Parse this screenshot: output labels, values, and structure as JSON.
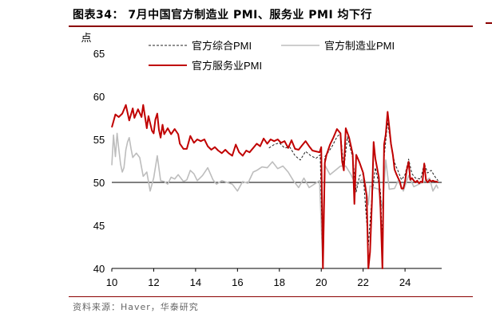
{
  "title": "图表34： 7月中国官方制造业 PMI、服务业 PMI 均下行",
  "source": "资料来源：Haver，华泰研究",
  "chart_data": {
    "type": "line",
    "ylabel": "点",
    "xlim": [
      2010,
      2025.75
    ],
    "ylim": [
      40,
      65
    ],
    "yticks": [
      40,
      45,
      50,
      55,
      60,
      65
    ],
    "xticks": [
      2010,
      2012,
      2014,
      2016,
      2018,
      2020,
      2022,
      2024
    ],
    "xtick_labels": [
      "10",
      "12",
      "14",
      "16",
      "18",
      "20",
      "22",
      "24"
    ],
    "reference_line": 50,
    "legend": "top",
    "series": [
      {
        "name": "官方综合PMI",
        "color": "#222222",
        "style": "dashed",
        "points": [
          [
            2017.5,
            54.0
          ],
          [
            2017.75,
            54.4
          ],
          [
            2018.0,
            54.6
          ],
          [
            2018.25,
            54.0
          ],
          [
            2018.5,
            54.1
          ],
          [
            2018.75,
            53.1
          ],
          [
            2019.0,
            52.6
          ],
          [
            2019.25,
            53.6
          ],
          [
            2019.5,
            53.1
          ],
          [
            2019.75,
            52.8
          ],
          [
            2019.95,
            53.2
          ],
          [
            2020.08,
            28.9
          ],
          [
            2020.17,
            53.0
          ],
          [
            2020.3,
            53.4
          ],
          [
            2020.5,
            54.1
          ],
          [
            2020.75,
            55.3
          ],
          [
            2020.92,
            55.7
          ],
          [
            2021.08,
            51.6
          ],
          [
            2021.25,
            55.3
          ],
          [
            2021.5,
            52.9
          ],
          [
            2021.67,
            48.9
          ],
          [
            2021.83,
            50.8
          ],
          [
            2022.0,
            51.0
          ],
          [
            2022.25,
            42.7
          ],
          [
            2022.42,
            48.4
          ],
          [
            2022.58,
            51.7
          ],
          [
            2022.83,
            49.0
          ],
          [
            2022.92,
            42.6
          ],
          [
            2023.0,
            52.9
          ],
          [
            2023.17,
            57.0
          ],
          [
            2023.33,
            54.4
          ],
          [
            2023.5,
            52.3
          ],
          [
            2023.67,
            51.3
          ],
          [
            2023.83,
            50.3
          ],
          [
            2024.0,
            50.9
          ],
          [
            2024.17,
            52.7
          ],
          [
            2024.33,
            51.0
          ],
          [
            2024.5,
            50.5
          ],
          [
            2024.75,
            50.4
          ],
          [
            2024.92,
            52.2
          ],
          [
            2025.08,
            51.1
          ],
          [
            2025.25,
            51.4
          ],
          [
            2025.42,
            50.7
          ],
          [
            2025.58,
            50.2
          ]
        ]
      },
      {
        "name": "官方制造业PMI",
        "color": "#bdbdbd",
        "style": "solid",
        "points": [
          [
            2010.0,
            52.0
          ],
          [
            2010.08,
            55.5
          ],
          [
            2010.17,
            53.0
          ],
          [
            2010.25,
            55.7
          ],
          [
            2010.33,
            53.9
          ],
          [
            2010.42,
            52.1
          ],
          [
            2010.5,
            51.2
          ],
          [
            2010.58,
            51.7
          ],
          [
            2010.67,
            53.8
          ],
          [
            2010.75,
            54.7
          ],
          [
            2010.83,
            55.2
          ],
          [
            2010.92,
            53.9
          ],
          [
            2011.0,
            52.9
          ],
          [
            2011.17,
            53.4
          ],
          [
            2011.33,
            52.9
          ],
          [
            2011.5,
            50.7
          ],
          [
            2011.67,
            51.2
          ],
          [
            2011.83,
            49.0
          ],
          [
            2012.0,
            50.5
          ],
          [
            2012.17,
            53.1
          ],
          [
            2012.33,
            50.2
          ],
          [
            2012.5,
            50.1
          ],
          [
            2012.67,
            49.8
          ],
          [
            2012.83,
            50.6
          ],
          [
            2013.0,
            50.4
          ],
          [
            2013.17,
            50.9
          ],
          [
            2013.42,
            50.1
          ],
          [
            2013.58,
            50.3
          ],
          [
            2013.75,
            51.4
          ],
          [
            2013.92,
            51.0
          ],
          [
            2014.08,
            50.2
          ],
          [
            2014.33,
            50.8
          ],
          [
            2014.58,
            51.7
          ],
          [
            2014.83,
            50.3
          ],
          [
            2015.0,
            49.8
          ],
          [
            2015.25,
            50.2
          ],
          [
            2015.5,
            50.0
          ],
          [
            2015.75,
            49.8
          ],
          [
            2016.0,
            49.0
          ],
          [
            2016.25,
            50.1
          ],
          [
            2016.5,
            49.9
          ],
          [
            2016.75,
            51.2
          ],
          [
            2016.92,
            51.4
          ],
          [
            2017.17,
            51.8
          ],
          [
            2017.42,
            51.7
          ],
          [
            2017.67,
            52.4
          ],
          [
            2017.92,
            51.6
          ],
          [
            2018.17,
            51.9
          ],
          [
            2018.42,
            51.2
          ],
          [
            2018.67,
            50.2
          ],
          [
            2018.92,
            49.4
          ],
          [
            2019.17,
            50.5
          ],
          [
            2019.42,
            49.4
          ],
          [
            2019.67,
            49.8
          ],
          [
            2019.92,
            50.2
          ],
          [
            2020.08,
            35.7
          ],
          [
            2020.17,
            52.0
          ],
          [
            2020.42,
            50.9
          ],
          [
            2020.67,
            51.4
          ],
          [
            2020.92,
            51.9
          ],
          [
            2021.17,
            51.9
          ],
          [
            2021.42,
            50.9
          ],
          [
            2021.67,
            49.6
          ],
          [
            2021.92,
            50.3
          ],
          [
            2022.08,
            50.2
          ],
          [
            2022.25,
            47.4
          ],
          [
            2022.33,
            49.6
          ],
          [
            2022.5,
            49.4
          ],
          [
            2022.75,
            49.2
          ],
          [
            2022.92,
            47.0
          ],
          [
            2023.08,
            52.6
          ],
          [
            2023.25,
            49.2
          ],
          [
            2023.5,
            49.3
          ],
          [
            2023.67,
            50.2
          ],
          [
            2023.92,
            49.0
          ],
          [
            2024.17,
            50.8
          ],
          [
            2024.42,
            49.5
          ],
          [
            2024.67,
            49.8
          ],
          [
            2024.92,
            50.1
          ],
          [
            2025.17,
            50.5
          ],
          [
            2025.33,
            49.0
          ],
          [
            2025.5,
            49.7
          ],
          [
            2025.58,
            49.3
          ]
        ]
      },
      {
        "name": "官方服务业PMI",
        "color": "#c00000",
        "style": "solid",
        "points": [
          [
            2010.0,
            56.4
          ],
          [
            2010.17,
            57.9
          ],
          [
            2010.33,
            57.6
          ],
          [
            2010.5,
            58.0
          ],
          [
            2010.67,
            59.0
          ],
          [
            2010.83,
            57.2
          ],
          [
            2011.0,
            58.6
          ],
          [
            2011.08,
            57.5
          ],
          [
            2011.25,
            58.5
          ],
          [
            2011.42,
            57.6
          ],
          [
            2011.5,
            59.0
          ],
          [
            2011.67,
            56.3
          ],
          [
            2011.75,
            57.7
          ],
          [
            2011.92,
            56.0
          ],
          [
            2012.0,
            55.7
          ],
          [
            2012.08,
            57.3
          ],
          [
            2012.17,
            58.0
          ],
          [
            2012.25,
            56.1
          ],
          [
            2012.33,
            55.2
          ],
          [
            2012.42,
            56.7
          ],
          [
            2012.5,
            55.6
          ],
          [
            2012.67,
            56.3
          ],
          [
            2012.83,
            55.6
          ],
          [
            2013.0,
            56.2
          ],
          [
            2013.17,
            55.6
          ],
          [
            2013.25,
            54.5
          ],
          [
            2013.42,
            53.9
          ],
          [
            2013.58,
            53.9
          ],
          [
            2013.75,
            55.4
          ],
          [
            2013.92,
            54.6
          ],
          [
            2014.08,
            55.0
          ],
          [
            2014.25,
            54.8
          ],
          [
            2014.42,
            55.0
          ],
          [
            2014.58,
            54.2
          ],
          [
            2014.75,
            53.8
          ],
          [
            2014.92,
            54.1
          ],
          [
            2015.08,
            53.7
          ],
          [
            2015.25,
            53.4
          ],
          [
            2015.42,
            53.8
          ],
          [
            2015.58,
            53.4
          ],
          [
            2015.75,
            53.1
          ],
          [
            2015.92,
            54.4
          ],
          [
            2016.08,
            53.5
          ],
          [
            2016.25,
            53.1
          ],
          [
            2016.42,
            53.7
          ],
          [
            2016.58,
            53.5
          ],
          [
            2016.75,
            54.0
          ],
          [
            2016.92,
            54.5
          ],
          [
            2017.08,
            54.2
          ],
          [
            2017.25,
            55.1
          ],
          [
            2017.42,
            54.5
          ],
          [
            2017.58,
            55.0
          ],
          [
            2017.75,
            54.8
          ],
          [
            2017.92,
            55.0
          ],
          [
            2018.08,
            54.6
          ],
          [
            2018.25,
            54.8
          ],
          [
            2018.42,
            54.0
          ],
          [
            2018.58,
            54.9
          ],
          [
            2018.75,
            53.9
          ],
          [
            2018.92,
            53.8
          ],
          [
            2019.08,
            54.3
          ],
          [
            2019.25,
            54.8
          ],
          [
            2019.42,
            54.2
          ],
          [
            2019.58,
            53.7
          ],
          [
            2019.75,
            53.6
          ],
          [
            2019.92,
            53.5
          ],
          [
            2020.0,
            54.1
          ],
          [
            2020.08,
            29.6
          ],
          [
            2020.17,
            52.3
          ],
          [
            2020.25,
            53.2
          ],
          [
            2020.42,
            54.4
          ],
          [
            2020.58,
            55.2
          ],
          [
            2020.75,
            56.2
          ],
          [
            2020.92,
            55.7
          ],
          [
            2021.0,
            52.4
          ],
          [
            2021.08,
            51.4
          ],
          [
            2021.17,
            56.3
          ],
          [
            2021.33,
            55.2
          ],
          [
            2021.5,
            53.3
          ],
          [
            2021.58,
            47.5
          ],
          [
            2021.67,
            53.2
          ],
          [
            2021.83,
            52.3
          ],
          [
            2022.0,
            51.1
          ],
          [
            2022.17,
            48.4
          ],
          [
            2022.25,
            40.0
          ],
          [
            2022.33,
            41.9
          ],
          [
            2022.42,
            47.8
          ],
          [
            2022.5,
            54.7
          ],
          [
            2022.58,
            52.8
          ],
          [
            2022.75,
            50.6
          ],
          [
            2022.83,
            47.0
          ],
          [
            2022.92,
            39.4
          ],
          [
            2023.0,
            54.4
          ],
          [
            2023.08,
            55.6
          ],
          [
            2023.17,
            58.2
          ],
          [
            2023.25,
            56.4
          ],
          [
            2023.33,
            54.5
          ],
          [
            2023.42,
            53.2
          ],
          [
            2023.5,
            51.5
          ],
          [
            2023.58,
            51.0
          ],
          [
            2023.67,
            50.5
          ],
          [
            2023.75,
            50.1
          ],
          [
            2023.83,
            49.3
          ],
          [
            2023.92,
            49.3
          ],
          [
            2024.0,
            50.1
          ],
          [
            2024.08,
            51.4
          ],
          [
            2024.17,
            52.4
          ],
          [
            2024.25,
            50.3
          ],
          [
            2024.33,
            50.5
          ],
          [
            2024.42,
            50.2
          ],
          [
            2024.5,
            50.0
          ],
          [
            2024.58,
            50.2
          ],
          [
            2024.67,
            49.9
          ],
          [
            2024.75,
            50.1
          ],
          [
            2024.83,
            50.0
          ],
          [
            2024.92,
            52.2
          ],
          [
            2025.0,
            50.3
          ],
          [
            2025.08,
            50.0
          ],
          [
            2025.17,
            50.3
          ],
          [
            2025.25,
            50.1
          ],
          [
            2025.33,
            50.2
          ],
          [
            2025.42,
            50.1
          ],
          [
            2025.5,
            50.1
          ],
          [
            2025.58,
            50.0
          ]
        ]
      }
    ]
  }
}
